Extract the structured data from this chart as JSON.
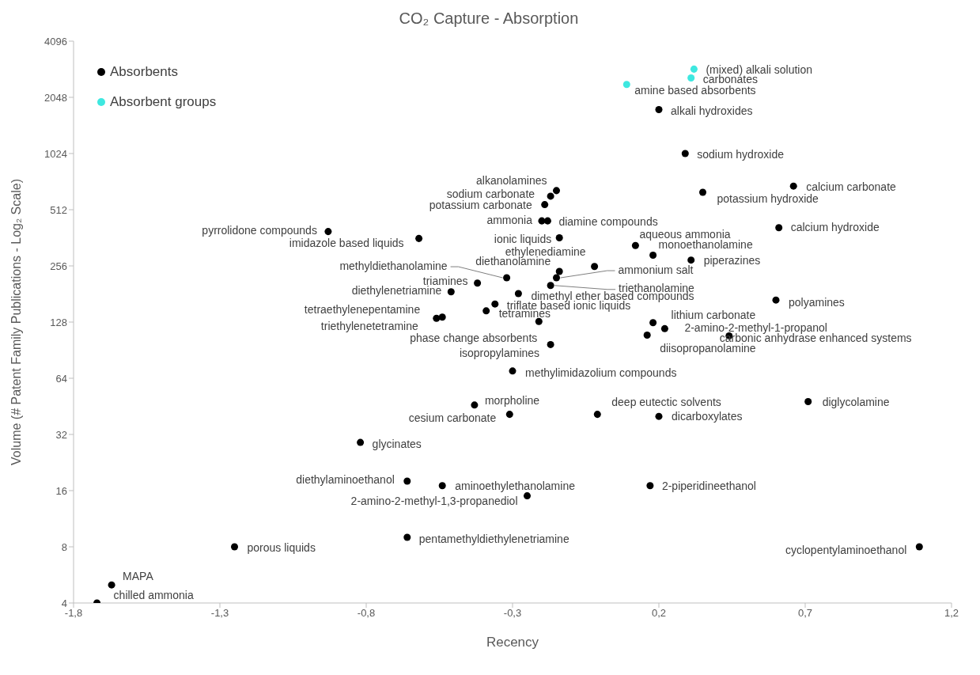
{
  "chart_data": {
    "type": "scatter",
    "title": "CO₂ Capture - Absorption",
    "xlabel": "Recency",
    "ylabel": "Volume (# Patent Family Publications - Log₂ Scale)",
    "xlim": [
      -1.8,
      1.2
    ],
    "xticks": [
      {
        "value": -1.8,
        "label": "-1,8"
      },
      {
        "value": -1.3,
        "label": "-1,3"
      },
      {
        "value": -0.8,
        "label": "-0,8"
      },
      {
        "value": -0.3,
        "label": "-0,3"
      },
      {
        "value": 0.2,
        "label": "0,2"
      },
      {
        "value": 0.7,
        "label": "0,7"
      },
      {
        "value": 1.2,
        "label": "1,2"
      }
    ],
    "ylim": [
      4,
      4096
    ],
    "yticks": [
      4,
      8,
      16,
      32,
      64,
      128,
      256,
      512,
      1024,
      2048,
      4096
    ],
    "log": "y",
    "marker": "circle",
    "legend": "top left",
    "series": [
      {
        "name": "Absorbents",
        "color": "#000000",
        "x": [
          0.2,
          0.29,
          0.66,
          0.35,
          0.61,
          -0.15,
          -0.17,
          -0.19,
          -0.2,
          -0.18,
          -0.93,
          -0.62,
          -0.14,
          0.12,
          0.18,
          0.31,
          -0.02,
          -0.32,
          -0.14,
          -0.15,
          -0.17,
          -0.42,
          -0.51,
          -0.28,
          -0.36,
          -0.39,
          -0.54,
          -0.56,
          -0.21,
          -0.17,
          0.6,
          0.18,
          0.22,
          0.44,
          0.16,
          -0.3,
          -0.43,
          -0.31,
          -0.01,
          0.2,
          0.71,
          -0.82,
          -0.66,
          -0.54,
          -0.25,
          0.17,
          -0.66,
          -1.25,
          1.09,
          -1.67,
          -1.72
        ],
        "values": [
          1760,
          1024,
          685,
          635,
          410,
          648,
          605,
          545,
          446,
          446,
          391,
          359,
          362,
          329,
          292,
          275,
          254,
          221,
          239,
          221,
          201,
          207,
          186,
          182,
          160,
          147,
          136,
          134,
          129,
          97,
          168,
          127,
          118,
          108,
          109,
          70,
          46,
          41,
          41,
          40,
          48,
          29,
          18,
          17,
          15,
          17,
          9,
          8,
          8,
          5,
          4
        ]
      },
      {
        "name": "Absorbent groups",
        "color": "#3ee8e0",
        "x": [
          0.32,
          0.31,
          0.09
        ],
        "values": [
          2900,
          2600,
          2400
        ]
      }
    ],
    "annotations": [
      {
        "text": "(mixed) alkali solution",
        "x": 0.32,
        "y": 2900
      },
      {
        "text": "carbonates",
        "x": 0.31,
        "y": 2600
      },
      {
        "text": "amine based absorbents",
        "x": 0.09,
        "y": 2400
      },
      {
        "text": "alkali hydroxides",
        "x": 0.2,
        "y": 1760
      },
      {
        "text": "sodium hydroxide",
        "x": 0.29,
        "y": 1024
      },
      {
        "text": "calcium carbonate",
        "x": 0.66,
        "y": 685
      },
      {
        "text": "potassium hydroxide",
        "x": 0.35,
        "y": 635
      },
      {
        "text": "calcium hydroxide",
        "x": 0.61,
        "y": 410
      },
      {
        "text": "alkanolamines",
        "x": -0.15,
        "y": 648
      },
      {
        "text": "sodium carbonate",
        "x": -0.17,
        "y": 605
      },
      {
        "text": "potassium carbonate",
        "x": -0.19,
        "y": 545
      },
      {
        "text": "ammonia",
        "x": -0.2,
        "y": 446
      },
      {
        "text": "diamine compounds",
        "x": -0.18,
        "y": 446
      },
      {
        "text": "pyrrolidone compounds",
        "x": -0.93,
        "y": 391
      },
      {
        "text": "imidazole based liquids",
        "x": -0.62,
        "y": 359
      },
      {
        "text": "ionic liquids",
        "x": -0.14,
        "y": 362
      },
      {
        "text": "aqueous ammonia",
        "x": 0.12,
        "y": 329
      },
      {
        "text": "monoethanolamine",
        "x": 0.18,
        "y": 292
      },
      {
        "text": "piperazines",
        "x": 0.31,
        "y": 275
      },
      {
        "text": "ethylenediamine",
        "x": -0.02,
        "y": 254
      },
      {
        "text": "methyldiethanolamine",
        "x": -0.32,
        "y": 221
      },
      {
        "text": "diethanolamine",
        "x": -0.14,
        "y": 239
      },
      {
        "text": "ammonium salt",
        "x": -0.15,
        "y": 221
      },
      {
        "text": "triethanolamine",
        "x": -0.17,
        "y": 201
      },
      {
        "text": "triamines",
        "x": -0.42,
        "y": 207
      },
      {
        "text": "diethylenetriamine",
        "x": -0.51,
        "y": 186
      },
      {
        "text": "dimethyl ether based compounds",
        "x": -0.28,
        "y": 182
      },
      {
        "text": "triflate based ionic liquids",
        "x": -0.36,
        "y": 160
      },
      {
        "text": "tetramines",
        "x": -0.39,
        "y": 147
      },
      {
        "text": "tetraethylenepentamine",
        "x": -0.54,
        "y": 136
      },
      {
        "text": "triethylenetetramine",
        "x": -0.56,
        "y": 134
      },
      {
        "text": "phase change absorbents",
        "x": -0.21,
        "y": 129
      },
      {
        "text": "isopropylamines",
        "x": -0.17,
        "y": 97
      },
      {
        "text": "polyamines",
        "x": 0.6,
        "y": 168
      },
      {
        "text": "lithium carbonate",
        "x": 0.18,
        "y": 127
      },
      {
        "text": "2-amino-2-methyl-1-propanol",
        "x": 0.22,
        "y": 118
      },
      {
        "text": "carbonic anhydrase enhanced systems",
        "x": 0.44,
        "y": 108
      },
      {
        "text": "diisopropanolamine",
        "x": 0.16,
        "y": 109
      },
      {
        "text": "methylimidazolium compounds",
        "x": -0.3,
        "y": 70
      },
      {
        "text": "morpholine",
        "x": -0.43,
        "y": 46
      },
      {
        "text": "cesium carbonate",
        "x": -0.31,
        "y": 41
      },
      {
        "text": "deep eutectic solvents",
        "x": -0.01,
        "y": 41
      },
      {
        "text": "dicarboxylates",
        "x": 0.2,
        "y": 40
      },
      {
        "text": "diglycolamine",
        "x": 0.71,
        "y": 48
      },
      {
        "text": "glycinates",
        "x": -0.82,
        "y": 29
      },
      {
        "text": "diethylaminoethanol",
        "x": -0.66,
        "y": 18
      },
      {
        "text": "aminoethylethanolamine",
        "x": -0.54,
        "y": 17
      },
      {
        "text": "2-amino-2-methyl-1,3-propanediol",
        "x": -0.25,
        "y": 15
      },
      {
        "text": "2-piperidineethanol",
        "x": 0.17,
        "y": 17
      },
      {
        "text": "pentamethyldiethylenetriamine",
        "x": -0.66,
        "y": 9
      },
      {
        "text": "porous liquids",
        "x": -1.25,
        "y": 8
      },
      {
        "text": "cyclopentylaminoethanol",
        "x": 1.09,
        "y": 8
      },
      {
        "text": "MAPA",
        "x": -1.67,
        "y": 5
      },
      {
        "text": "chilled ammonia",
        "x": -1.72,
        "y": 4
      }
    ]
  }
}
